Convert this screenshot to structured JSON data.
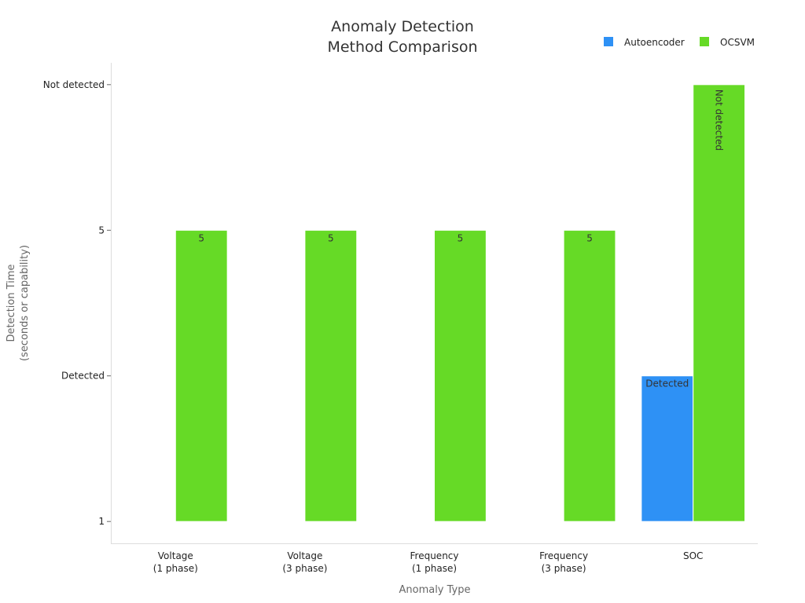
{
  "chart_data": {
    "type": "bar",
    "title": [
      "Anomaly Detection",
      "Method Comparison"
    ],
    "xlabel": "Anomaly Type",
    "ylabel": [
      "Detection Time",
      "(seconds or capability)"
    ],
    "categories": [
      [
        "Voltage",
        "(1 phase)"
      ],
      [
        "Voltage",
        "(3 phase)"
      ],
      [
        "Frequency",
        "(1 phase)"
      ],
      [
        "Frequency",
        "(3 phase)"
      ],
      [
        "SOC"
      ]
    ],
    "yticks": [
      {
        "value": 1,
        "label": "1"
      },
      {
        "value": 3,
        "label": "Detected"
      },
      {
        "value": 5,
        "label": "5"
      },
      {
        "value": 7,
        "label": "Not detected"
      }
    ],
    "ylim": [
      0.7,
      7.3
    ],
    "legend_position": "top-right",
    "grid": false,
    "series": [
      {
        "name": "Autoencoder",
        "color": "#2E91F5",
        "values": [
          null,
          null,
          null,
          null,
          3
        ],
        "labels": [
          "",
          "",
          "",
          "",
          "Detected"
        ]
      },
      {
        "name": "OCSVM",
        "color": "#66DA26",
        "values": [
          5,
          5,
          5,
          5,
          7
        ],
        "labels": [
          "5",
          "5",
          "5",
          "5",
          "Not detected"
        ]
      }
    ]
  }
}
